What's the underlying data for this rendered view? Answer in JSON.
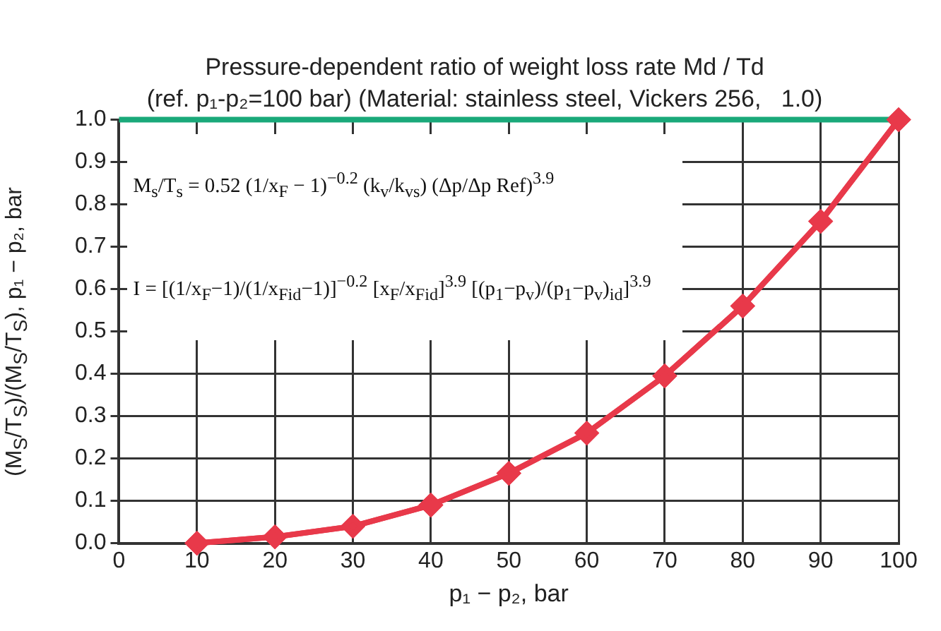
{
  "chart_data": {
    "type": "line",
    "title": "Pressure-dependent ratio of weight loss rate Md / Td",
    "subtitle": "(ref. p₁-p₂=100 bar) (Material: stainless steel, Vickers 256,   1.0)",
    "xlabel": "p₁ − p₂, bar",
    "ylabel": "(M$_{S}$/T$_{S}$)/(M$_{S}$/T$_{S}$), p₁ − p₂, bar",
    "x": [
      10,
      20,
      30,
      40,
      50,
      60,
      70,
      80,
      90,
      100
    ],
    "series": [
      {
        "color": "#e8394a",
        "values": [
          0.0,
          0.015,
          0.04,
          0.09,
          0.165,
          0.26,
          0.395,
          0.56,
          0.76,
          1.0
        ]
      }
    ],
    "xlim": [
      0,
      100
    ],
    "xticks": [
      0,
      10,
      20,
      30,
      40,
      50,
      60,
      70,
      80,
      90,
      100
    ],
    "ylim": [
      0,
      1.0
    ],
    "yticks": [
      {
        "value": 0,
        "label": "0.0"
      },
      0.1,
      0.2,
      0.3,
      0.4,
      0.5,
      0.6,
      0.7,
      0.8,
      0.9,
      {
        "value": 1,
        "label": "1.0"
      }
    ],
    "ref_lines": [
      {
        "axis": "y",
        "value": 1.0,
        "color": "#1aa97a"
      }
    ],
    "annotations": [
      "M$_{s}$/T$_{s}$ = 0.52 (1/x$_{F}$ − 1)$^{−0.2}$ (k$_{v}$/k$_{vs}$) (Δp/Δp Ref)$^{3.9}$",
      "I = [(1/x$_{F}$−1)/(1/x$_{Fid}$−1)]$^{−0.2}$ [x$_{F}$/x$_{Fid}$]$^{3.9}$ [(p$_{1}$−p$_{v}$)/(p$_{1}$−p$_{v}$)$_{id}$]$^{3.9}$"
    ],
    "grid": true,
    "legend": false,
    "marker": "diamond",
    "line_style": "solid"
  }
}
